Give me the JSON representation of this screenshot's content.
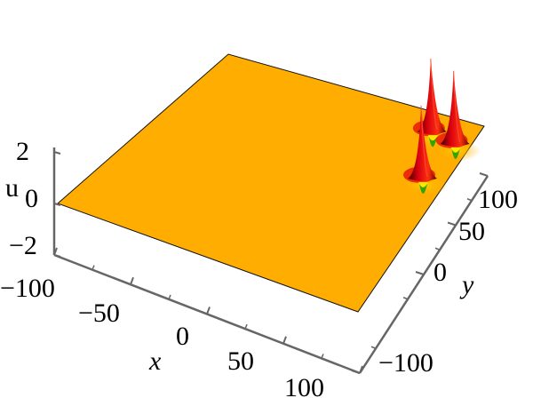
{
  "chart_data": {
    "type": "surface3d",
    "title": "",
    "colors": {
      "surface": "#ffad00",
      "peak_high": "#e8000a",
      "peak_mid": "#ffe500",
      "peak_low": "#33a300",
      "frame": "#666666"
    },
    "axes": {
      "x": {
        "label": "x",
        "range": [
          -100,
          100
        ],
        "ticks": [
          "−100",
          "−50",
          "0",
          "50",
          "100"
        ]
      },
      "y": {
        "label": "y",
        "range": [
          -100,
          100
        ],
        "ticks": [
          "−100",
          "0",
          "50",
          "100"
        ]
      },
      "z": {
        "label": "u",
        "range": [
          -2,
          2
        ],
        "ticks": [
          "−2",
          "0",
          "2"
        ]
      }
    },
    "peaks": [
      {
        "x": 85,
        "y": 35,
        "height": 2.0
      },
      {
        "x": 90,
        "y": 75,
        "height": 2.0
      },
      {
        "x": 70,
        "y": 80,
        "height": 2.0
      }
    ],
    "grid": false,
    "legend": "none"
  }
}
